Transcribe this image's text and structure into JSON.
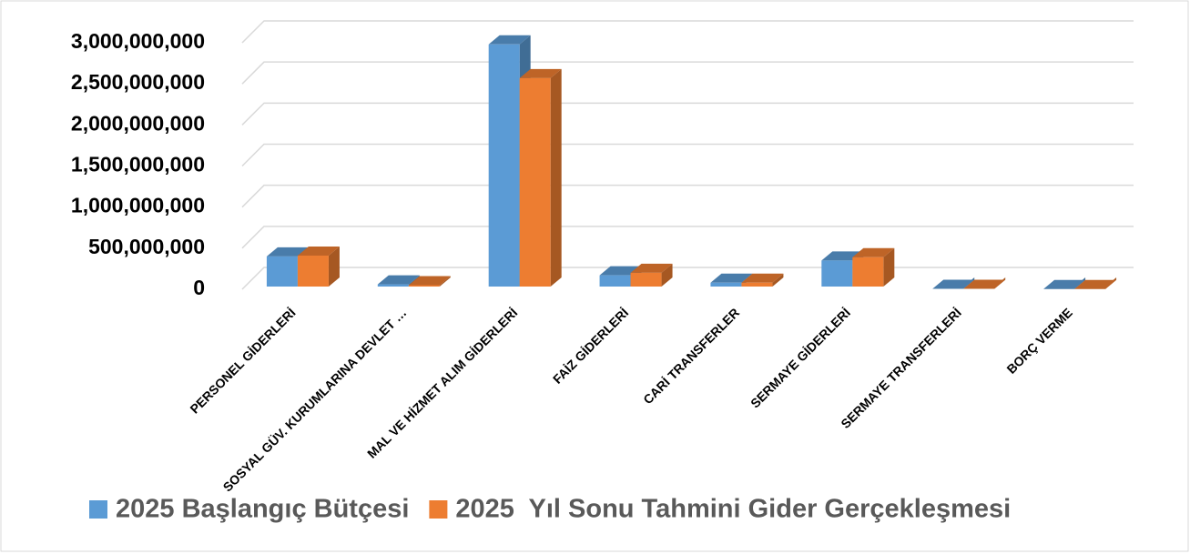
{
  "chart_data": {
    "type": "bar3d",
    "categories": [
      "PERSONEL GİDERLERİ",
      "SOSYAL GÜV. KURUMLARINA DEVLET …",
      "MAL VE HİZMET ALIM GİDERLERİ",
      "FAİZ GİDERLERİ",
      "CARİ TRANSFERLER",
      "SERMAYE GİDERLERİ",
      "SERMAYE TRANSFERLERİ",
      "BORÇ VERME"
    ],
    "series": [
      {
        "name": "2025 Başlangıç Bütçesi",
        "color": "#5b9bd5",
        "values": [
          400000000,
          60000000,
          2980000000,
          170000000,
          80000000,
          350000000,
          5000000,
          3000000
        ]
      },
      {
        "name": "2025  Yıl Sonu Tahmini Gider Gerçekleşmesi",
        "color": "#ed7d31",
        "values": [
          410000000,
          50000000,
          2570000000,
          200000000,
          80000000,
          390000000,
          5000000,
          3000000
        ]
      }
    ],
    "ylim": [
      0,
      3000000000
    ],
    "yticks": [
      0,
      {
        "value": 500000000,
        "label": "500,000,000"
      },
      {
        "value": 1000000000,
        "label": "1,000,000,000"
      },
      {
        "value": 1500000000,
        "label": "1,500,000,000"
      },
      {
        "value": 2000000000,
        "label": "2,000,000,000"
      },
      {
        "value": 2500000000,
        "label": "2,500,000,000"
      },
      {
        "value": 3000000000,
        "label": "3,000,000,000"
      }
    ],
    "grid": true,
    "legend": "bottom"
  }
}
